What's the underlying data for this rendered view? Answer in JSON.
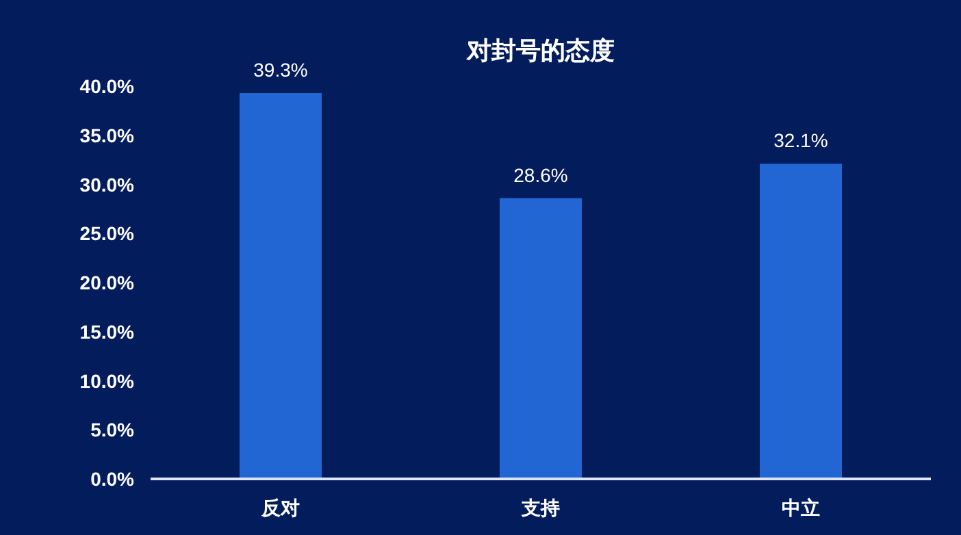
{
  "chart_data": {
    "type": "bar",
    "title": "对封号的态度",
    "categories": [
      "反对",
      "支持",
      "中立"
    ],
    "values": [
      39.3,
      28.6,
      32.1
    ],
    "value_labels": [
      "39.3%",
      "28.6%",
      "32.1%"
    ],
    "color": "#2266d4",
    "ylim": [
      0,
      40
    ],
    "yticks": [
      {
        "value": 0,
        "label": "0.0%"
      },
      {
        "value": 5,
        "label": "5.0%"
      },
      {
        "value": 10,
        "label": "10.0%"
      },
      {
        "value": 15,
        "label": "15.0%"
      },
      {
        "value": 20,
        "label": "20.0%"
      },
      {
        "value": 25,
        "label": "25.0%"
      },
      {
        "value": 30,
        "label": "30.0%"
      },
      {
        "value": 35,
        "label": "35.0%"
      },
      {
        "value": 40,
        "label": "40.0%"
      }
    ],
    "grid": false
  }
}
